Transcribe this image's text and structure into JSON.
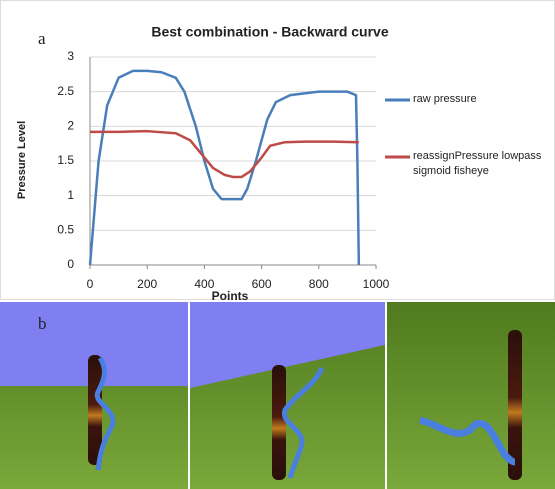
{
  "figure": {
    "labels": [
      "a",
      "b"
    ]
  },
  "chart_data": {
    "type": "line",
    "title": "Best combination - Backward curve",
    "x_label": "Points",
    "y_label": "Pressure Level",
    "xlim": [
      0,
      1000
    ],
    "xticks": [
      0,
      200,
      400,
      600,
      800,
      1000
    ],
    "ylim": [
      0,
      3
    ],
    "yticks": [
      0,
      0.5,
      1,
      1.5,
      2,
      2.5,
      3
    ],
    "grid": true,
    "legend": "right",
    "series": [
      {
        "name": "raw pressure",
        "color": "#4a7ebb",
        "x": [
          0,
          10,
          30,
          60,
          100,
          150,
          200,
          250,
          300,
          330,
          370,
          400,
          430,
          460,
          500,
          530,
          550,
          580,
          620,
          650,
          700,
          800,
          900,
          930,
          935,
          940
        ],
        "values": [
          0,
          0.5,
          1.5,
          2.3,
          2.7,
          2.8,
          2.8,
          2.78,
          2.7,
          2.5,
          2.0,
          1.5,
          1.1,
          0.95,
          0.95,
          0.95,
          1.1,
          1.5,
          2.1,
          2.35,
          2.45,
          2.5,
          2.5,
          2.45,
          1.5,
          0
        ]
      },
      {
        "name": "reassignPressure lowpass sigmoid fisheye",
        "color": "#be4b48",
        "x": [
          0,
          100,
          200,
          300,
          350,
          400,
          430,
          470,
          500,
          530,
          560,
          600,
          630,
          680,
          750,
          850,
          940
        ],
        "values": [
          1.92,
          1.92,
          1.93,
          1.9,
          1.8,
          1.55,
          1.4,
          1.3,
          1.27,
          1.27,
          1.35,
          1.55,
          1.72,
          1.77,
          1.78,
          1.78,
          1.77
        ]
      }
    ]
  }
}
